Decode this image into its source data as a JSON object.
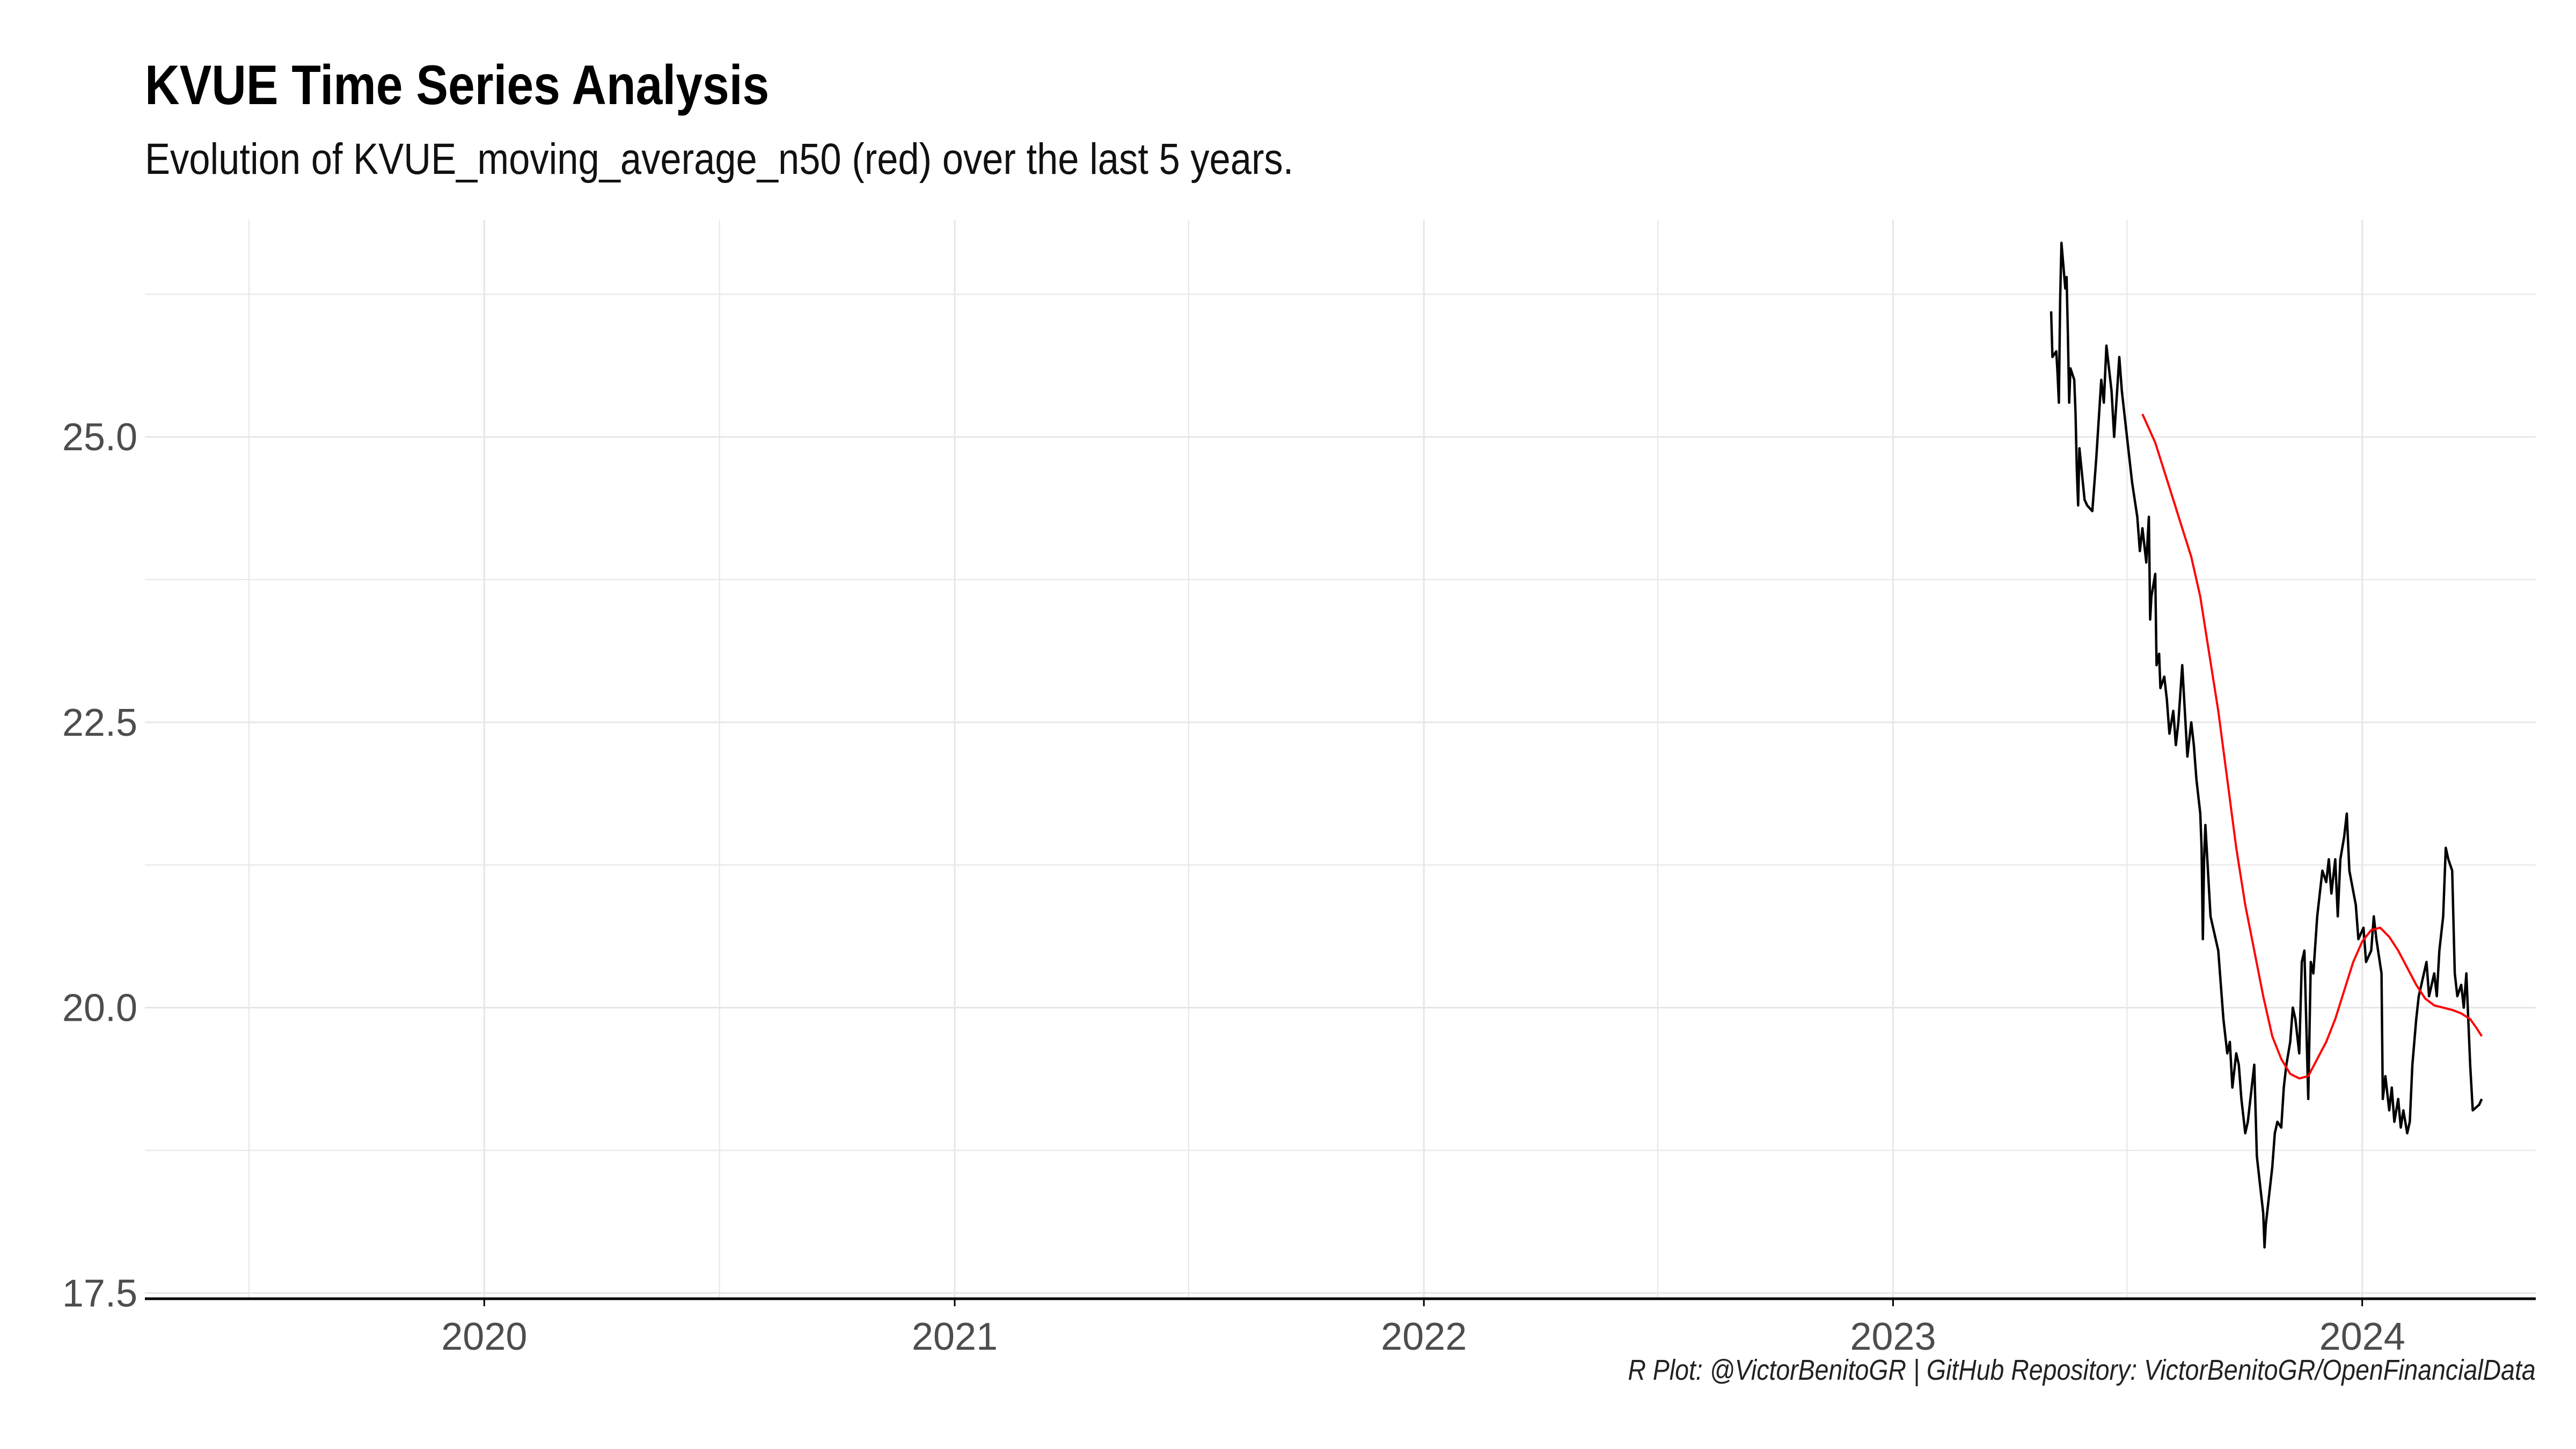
{
  "header": {
    "title": "KVUE Time Series Analysis",
    "subtitle": "Evolution of KVUE_moving_average_n50  (red) over the last 5 years."
  },
  "footer": {
    "caption": "R Plot: @VictorBenitoGR | GitHub Repository:  VictorBenitoGR/OpenFinancialData"
  },
  "colors": {
    "price_line": "#000000",
    "moving_average_line": "#ff0000",
    "grid": "#e6e6e6",
    "axis": "#000000"
  },
  "chart_data": {
    "type": "line",
    "title": "KVUE Time Series Analysis",
    "subtitle": "Evolution of KVUE_moving_average_n50  (red) over the last 5 years.",
    "xlabel": "",
    "ylabel": "",
    "xlim": [
      "2019-04-12",
      "2024-05-15"
    ],
    "ylim": [
      17.45,
      26.9
    ],
    "x_ticks": [
      "2020",
      "2021",
      "2022",
      "2023",
      "2024"
    ],
    "y_ticks": [
      "17.5",
      "20.0",
      "22.5",
      "25.0"
    ],
    "grid": true,
    "series": [
      {
        "color": "#000000",
        "points": [
          [
            "2023-05-04",
            26.1
          ],
          [
            "2023-05-05",
            25.7
          ],
          [
            "2023-05-08",
            25.75
          ],
          [
            "2023-05-09",
            25.55
          ],
          [
            "2023-05-10",
            25.3
          ],
          [
            "2023-05-11",
            26.2
          ],
          [
            "2023-05-12",
            26.7
          ],
          [
            "2023-05-15",
            26.3
          ],
          [
            "2023-05-16",
            26.4
          ],
          [
            "2023-05-17",
            25.9
          ],
          [
            "2023-05-18",
            25.3
          ],
          [
            "2023-05-19",
            25.6
          ],
          [
            "2023-05-22",
            25.5
          ],
          [
            "2023-05-23",
            25.2
          ],
          [
            "2023-05-24",
            24.7
          ],
          [
            "2023-05-25",
            24.4
          ],
          [
            "2023-05-26",
            24.9
          ],
          [
            "2023-05-30",
            24.45
          ],
          [
            "2023-06-01",
            24.4
          ],
          [
            "2023-06-05",
            24.35
          ],
          [
            "2023-06-08",
            24.8
          ],
          [
            "2023-06-12",
            25.5
          ],
          [
            "2023-06-14",
            25.3
          ],
          [
            "2023-06-16",
            25.8
          ],
          [
            "2023-06-20",
            25.4
          ],
          [
            "2023-06-22",
            25.0
          ],
          [
            "2023-06-26",
            25.7
          ],
          [
            "2023-06-28",
            25.4
          ],
          [
            "2023-07-03",
            24.9
          ],
          [
            "2023-07-06",
            24.6
          ],
          [
            "2023-07-10",
            24.3
          ],
          [
            "2023-07-12",
            24.0
          ],
          [
            "2023-07-14",
            24.2
          ],
          [
            "2023-07-17",
            23.9
          ],
          [
            "2023-07-19",
            24.3
          ],
          [
            "2023-07-20",
            23.4
          ],
          [
            "2023-07-21",
            23.6
          ],
          [
            "2023-07-24",
            23.8
          ],
          [
            "2023-07-25",
            23.0
          ],
          [
            "2023-07-27",
            23.1
          ],
          [
            "2023-07-28",
            22.8
          ],
          [
            "2023-07-31",
            22.9
          ],
          [
            "2023-08-02",
            22.7
          ],
          [
            "2023-08-04",
            22.4
          ],
          [
            "2023-08-07",
            22.6
          ],
          [
            "2023-08-09",
            22.3
          ],
          [
            "2023-08-11",
            22.5
          ],
          [
            "2023-08-14",
            23.0
          ],
          [
            "2023-08-16",
            22.6
          ],
          [
            "2023-08-18",
            22.2
          ],
          [
            "2023-08-21",
            22.5
          ],
          [
            "2023-08-23",
            22.3
          ],
          [
            "2023-08-25",
            22.0
          ],
          [
            "2023-08-28",
            21.7
          ],
          [
            "2023-08-29",
            21.4
          ],
          [
            "2023-08-30",
            20.6
          ],
          [
            "2023-08-31",
            21.3
          ],
          [
            "2023-09-01",
            21.6
          ],
          [
            "2023-09-05",
            20.8
          ],
          [
            "2023-09-07",
            20.7
          ],
          [
            "2023-09-11",
            20.5
          ],
          [
            "2023-09-13",
            20.2
          ],
          [
            "2023-09-15",
            19.9
          ],
          [
            "2023-09-18",
            19.6
          ],
          [
            "2023-09-20",
            19.7
          ],
          [
            "2023-09-22",
            19.3
          ],
          [
            "2023-09-25",
            19.6
          ],
          [
            "2023-09-27",
            19.5
          ],
          [
            "2023-09-29",
            19.2
          ],
          [
            "2023-10-02",
            18.9
          ],
          [
            "2023-10-04",
            19.0
          ],
          [
            "2023-10-06",
            19.2
          ],
          [
            "2023-10-09",
            19.5
          ],
          [
            "2023-10-11",
            18.7
          ],
          [
            "2023-10-13",
            18.5
          ],
          [
            "2023-10-16",
            18.2
          ],
          [
            "2023-10-17",
            17.9
          ],
          [
            "2023-10-18",
            18.1
          ],
          [
            "2023-10-20",
            18.3
          ],
          [
            "2023-10-23",
            18.6
          ],
          [
            "2023-10-25",
            18.9
          ],
          [
            "2023-10-27",
            19.0
          ],
          [
            "2023-10-30",
            18.95
          ],
          [
            "2023-11-01",
            19.3
          ],
          [
            "2023-11-03",
            19.5
          ],
          [
            "2023-11-06",
            19.7
          ],
          [
            "2023-11-08",
            20.0
          ],
          [
            "2023-11-10",
            19.9
          ],
          [
            "2023-11-13",
            19.6
          ],
          [
            "2023-11-15",
            20.4
          ],
          [
            "2023-11-17",
            20.5
          ],
          [
            "2023-11-20",
            19.2
          ],
          [
            "2023-11-22",
            20.4
          ],
          [
            "2023-11-24",
            20.3
          ],
          [
            "2023-11-27",
            20.8
          ],
          [
            "2023-11-29",
            21.0
          ],
          [
            "2023-12-01",
            21.2
          ],
          [
            "2023-12-04",
            21.1
          ],
          [
            "2023-12-06",
            21.3
          ],
          [
            "2023-12-08",
            21.0
          ],
          [
            "2023-12-11",
            21.3
          ],
          [
            "2023-12-13",
            20.8
          ],
          [
            "2023-12-15",
            21.3
          ],
          [
            "2023-12-18",
            21.5
          ],
          [
            "2023-12-20",
            21.7
          ],
          [
            "2023-12-22",
            21.2
          ],
          [
            "2023-12-27",
            20.9
          ],
          [
            "2023-12-29",
            20.6
          ],
          [
            "2024-01-02",
            20.7
          ],
          [
            "2024-01-04",
            20.4
          ],
          [
            "2024-01-08",
            20.5
          ],
          [
            "2024-01-10",
            20.8
          ],
          [
            "2024-01-12",
            20.6
          ],
          [
            "2024-01-16",
            20.3
          ],
          [
            "2024-01-17",
            19.2
          ],
          [
            "2024-01-19",
            19.4
          ],
          [
            "2024-01-22",
            19.1
          ],
          [
            "2024-01-24",
            19.3
          ],
          [
            "2024-01-26",
            19.0
          ],
          [
            "2024-01-29",
            19.2
          ],
          [
            "2024-01-31",
            18.95
          ],
          [
            "2024-02-02",
            19.1
          ],
          [
            "2024-02-05",
            18.9
          ],
          [
            "2024-02-07",
            19.0
          ],
          [
            "2024-02-09",
            19.5
          ],
          [
            "2024-02-12",
            19.9
          ],
          [
            "2024-02-14",
            20.1
          ],
          [
            "2024-02-16",
            20.2
          ],
          [
            "2024-02-20",
            20.4
          ],
          [
            "2024-02-22",
            20.1
          ],
          [
            "2024-02-26",
            20.3
          ],
          [
            "2024-02-28",
            20.1
          ],
          [
            "2024-03-01",
            20.5
          ],
          [
            "2024-03-04",
            20.8
          ],
          [
            "2024-03-06",
            21.4
          ],
          [
            "2024-03-08",
            21.3
          ],
          [
            "2024-03-11",
            21.2
          ],
          [
            "2024-03-13",
            20.3
          ],
          [
            "2024-03-15",
            20.1
          ],
          [
            "2024-03-18",
            20.2
          ],
          [
            "2024-03-20",
            20.0
          ],
          [
            "2024-03-22",
            20.3
          ],
          [
            "2024-03-25",
            19.5
          ],
          [
            "2024-03-27",
            19.1
          ],
          [
            "2024-04-01",
            19.15
          ],
          [
            "2024-04-03",
            19.2
          ]
        ]
      },
      {
        "color": "#ff0000",
        "points": [
          [
            "2023-07-14",
            25.2
          ],
          [
            "2023-07-18",
            25.1
          ],
          [
            "2023-07-24",
            24.95
          ],
          [
            "2023-07-31",
            24.7
          ],
          [
            "2023-08-07",
            24.45
          ],
          [
            "2023-08-14",
            24.2
          ],
          [
            "2023-08-21",
            23.95
          ],
          [
            "2023-08-28",
            23.6
          ],
          [
            "2023-09-04",
            23.1
          ],
          [
            "2023-09-11",
            22.6
          ],
          [
            "2023-09-18",
            22.0
          ],
          [
            "2023-09-25",
            21.4
          ],
          [
            "2023-10-02",
            20.9
          ],
          [
            "2023-10-09",
            20.5
          ],
          [
            "2023-10-16",
            20.1
          ],
          [
            "2023-10-23",
            19.75
          ],
          [
            "2023-10-30",
            19.55
          ],
          [
            "2023-11-06",
            19.42
          ],
          [
            "2023-11-13",
            19.38
          ],
          [
            "2023-11-20",
            19.4
          ],
          [
            "2023-11-27",
            19.55
          ],
          [
            "2023-12-04",
            19.7
          ],
          [
            "2023-12-11",
            19.9
          ],
          [
            "2023-12-18",
            20.15
          ],
          [
            "2023-12-25",
            20.4
          ],
          [
            "2024-01-01",
            20.58
          ],
          [
            "2024-01-08",
            20.68
          ],
          [
            "2024-01-15",
            20.7
          ],
          [
            "2024-01-22",
            20.62
          ],
          [
            "2024-01-29",
            20.5
          ],
          [
            "2024-02-05",
            20.35
          ],
          [
            "2024-02-12",
            20.2
          ],
          [
            "2024-02-19",
            20.08
          ],
          [
            "2024-02-26",
            20.02
          ],
          [
            "2024-03-04",
            20.0
          ],
          [
            "2024-03-11",
            19.98
          ],
          [
            "2024-03-18",
            19.95
          ],
          [
            "2024-03-25",
            19.9
          ],
          [
            "2024-03-30",
            19.82
          ],
          [
            "2024-04-03",
            19.75
          ]
        ]
      }
    ]
  }
}
